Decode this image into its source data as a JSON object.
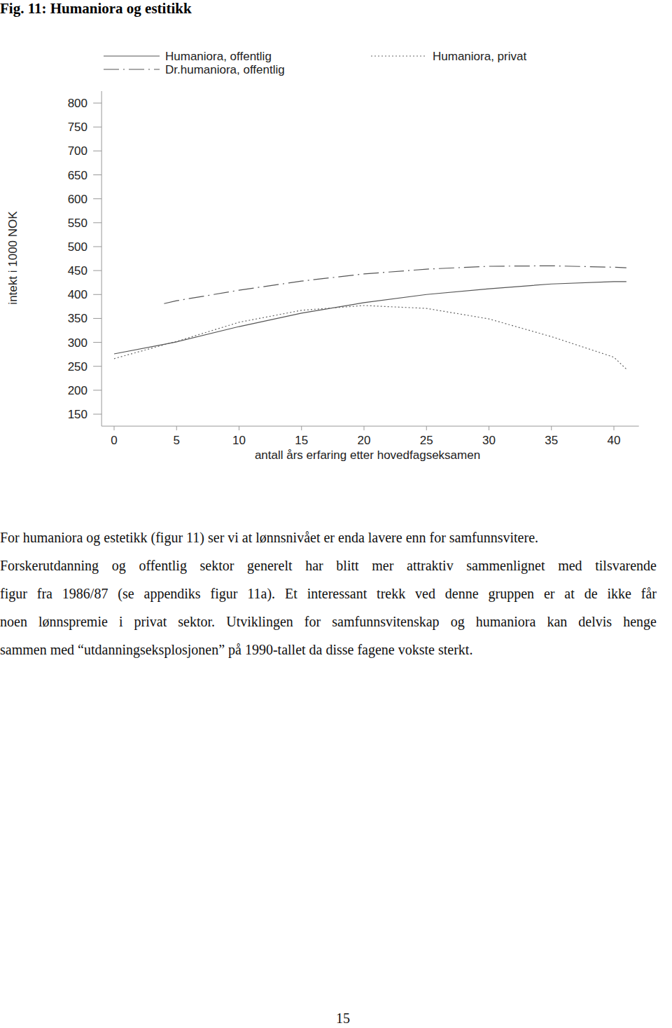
{
  "header": {
    "title": "Fig. 11: Humaniora og estitikk"
  },
  "chart_data": {
    "type": "line",
    "x_label": "antall års erfaring etter hovedfagseksamen",
    "y_label": "intekt i 1000 NOK",
    "x": [
      0,
      4,
      5,
      10,
      15,
      20,
      25,
      30,
      35,
      40,
      41
    ],
    "series": [
      {
        "name": "Humaniora, offentlig",
        "color": "#555555",
        "line_style": "solid",
        "values": [
          276,
          296,
          301,
          333,
          361,
          383,
          400,
          412,
          422,
          427,
          427
        ]
      },
      {
        "name": "Humaniora, privat",
        "color": "#666666",
        "line_style": "dotted",
        "values": [
          266,
          295,
          302,
          342,
          367,
          377,
          371,
          349,
          312,
          269,
          244
        ]
      },
      {
        "name": "Dr.humaniora, offentlig",
        "color": "#555555",
        "line_style": "dashdot",
        "values": [
          null,
          381,
          387,
          409,
          428,
          443,
          453,
          459,
          460,
          457,
          456
        ]
      }
    ],
    "xlim": [
      -1,
      42
    ],
    "xticks": [
      0,
      5,
      10,
      15,
      20,
      25,
      30,
      35,
      40
    ],
    "ylim": [
      125,
      825
    ],
    "yticks": [
      150,
      200,
      250,
      300,
      350,
      400,
      450,
      500,
      550,
      600,
      650,
      700,
      750,
      800
    ],
    "grid": false,
    "legend": "top"
  },
  "body": {
    "paragraphs": [
      [
        "For humaniora og estetikk (figur 11) ser vi at lønnsnivået er enda lavere enn for samfunnsvitere."
      ],
      [
        "Forskerutdanning og offentlig sektor generelt har blitt mer attraktiv sammenlignet med tilsvarende",
        "figur fra 1986/87 (se appendiks figur 11a). Et interessant trekk ved denne gruppen er at de ikke får",
        "noen lønnspremie i privat sektor. Utviklingen for samfunnsvitenskap og humaniora kan delvis henge",
        "sammen med “utdanningseksplosjonen” på 1990-tallet da disse fagene vokste sterkt."
      ]
    ]
  },
  "footer": {
    "page_number": "15"
  }
}
